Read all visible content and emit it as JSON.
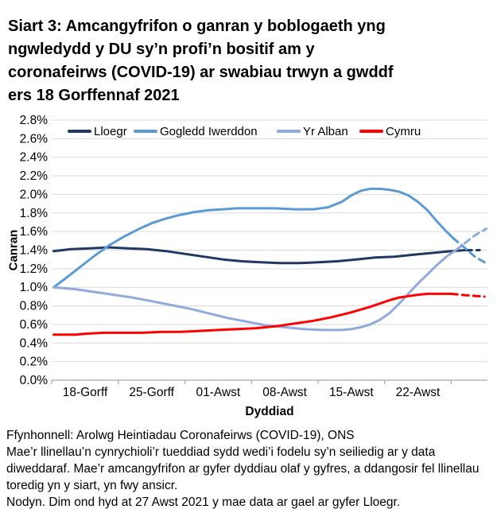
{
  "title": "Siart 3: Amcangyfrifon o ganran y boblogaeth yng ngwledydd y DU sy’n profi’n bositif am y coronafeirws (COVID-19) ar swabiau trwyn a gwddf ers 18 Gorffennaf 2021",
  "footnotes": {
    "source": "Ffynhonnell: Arolwg Heintiadau Coronafeirws (COVID-19), ONS",
    "note_trend": "Mae’r llinellau’n cynrychioli’r tueddiad sydd wedi’i fodelu sy’n seiliedig ar y data diweddaraf. Mae’r amcangyfrifon ar gyfer dyddiau olaf y gyfres, a ddangosir fel llinellau toredig yn y siart, yn fwy ansicr.",
    "note_england": "Nodyn. Dim ond hyd at 27 Awst 2021 y mae data ar gael ar gyfer Lloegr."
  },
  "chart_data": {
    "type": "line",
    "title": "Siart 3: Amcangyfrifon o ganran y boblogaeth yng ngwledydd y DU sy’n profi’n bositif am y coronafeirws (COVID-19) ar swabiau trwyn a gwddf ers 18 Gorffennaf 2021",
    "xlabel": "Dyddiad",
    "ylabel": "Canran",
    "x_unit": "days since 18 July 2021 (trend lines begin slightly before the first labelled date)",
    "x_tick_labels": [
      "18-Gorff",
      "25-Gorff",
      "01-Awst",
      "08-Awst",
      "15-Awst",
      "22-Awst"
    ],
    "y_tick_labels": [
      "0.0%",
      "0.2%",
      "0.4%",
      "0.6%",
      "0.8%",
      "1.0%",
      "1.2%",
      "1.4%",
      "1.6%",
      "1.8%",
      "2.0%",
      "2.2%",
      "2.4%",
      "2.6%",
      "2.8%"
    ],
    "ylim": [
      0,
      2.8
    ],
    "grid": "horizontal",
    "gridline_color": "#d9d9d9",
    "axis_color": "#a6a6a6",
    "legend_position": "top",
    "dashed_meaning": "llinellau toredig = amcangyfrifon mwy ansicr ar gyfer dyddiau olaf y gyfres",
    "series": [
      {
        "name": "Lloegr",
        "color": "#1f3864",
        "solid": [
          [
            -3.3,
            1.39
          ],
          [
            -1.5,
            1.41
          ],
          [
            0.5,
            1.42
          ],
          [
            2.5,
            1.43
          ],
          [
            4.5,
            1.42
          ],
          [
            6.5,
            1.41
          ],
          [
            8.5,
            1.39
          ],
          [
            10.5,
            1.36
          ],
          [
            12.5,
            1.33
          ],
          [
            14.5,
            1.3
          ],
          [
            16.5,
            1.28
          ],
          [
            18.5,
            1.27
          ],
          [
            20.5,
            1.26
          ],
          [
            22.5,
            1.26
          ],
          [
            24.5,
            1.27
          ],
          [
            26.5,
            1.28
          ],
          [
            28.5,
            1.3
          ],
          [
            30.5,
            1.32
          ],
          [
            32.5,
            1.33
          ],
          [
            34.5,
            1.35
          ],
          [
            36.5,
            1.37
          ],
          [
            38.5,
            1.39
          ],
          [
            40,
            1.4
          ]
        ],
        "dashed": [
          [
            40,
            1.4
          ],
          [
            41.5,
            1.4
          ]
        ]
      },
      {
        "name": "Gogledd Iwerddon",
        "color": "#5b9bd5",
        "solid": [
          [
            -3.3,
            1.0
          ],
          [
            -2,
            1.1
          ],
          [
            -0.5,
            1.22
          ],
          [
            1,
            1.34
          ],
          [
            2.5,
            1.45
          ],
          [
            4,
            1.54
          ],
          [
            5.5,
            1.62
          ],
          [
            7,
            1.69
          ],
          [
            8.5,
            1.74
          ],
          [
            10,
            1.78
          ],
          [
            11.5,
            1.81
          ],
          [
            13,
            1.83
          ],
          [
            14.5,
            1.84
          ],
          [
            16,
            1.85
          ],
          [
            18,
            1.85
          ],
          [
            20,
            1.85
          ],
          [
            22,
            1.84
          ],
          [
            24,
            1.84
          ],
          [
            25.5,
            1.86
          ],
          [
            27,
            1.92
          ],
          [
            28,
            1.99
          ],
          [
            29,
            2.04
          ],
          [
            30,
            2.06
          ],
          [
            31,
            2.06
          ],
          [
            32,
            2.05
          ],
          [
            33,
            2.03
          ],
          [
            34,
            1.99
          ],
          [
            35,
            1.92
          ],
          [
            36,
            1.83
          ],
          [
            37,
            1.71
          ],
          [
            38,
            1.6
          ],
          [
            38.7,
            1.53
          ]
        ],
        "dashed": [
          [
            38.7,
            1.53
          ],
          [
            40,
            1.42
          ],
          [
            41,
            1.33
          ],
          [
            42,
            1.27
          ]
        ]
      },
      {
        "name": "Yr Alban",
        "color": "#8faadc",
        "solid": [
          [
            -3.3,
            1.0
          ],
          [
            -1,
            0.98
          ],
          [
            1,
            0.95
          ],
          [
            3,
            0.92
          ],
          [
            5,
            0.89
          ],
          [
            7,
            0.85
          ],
          [
            9,
            0.81
          ],
          [
            11,
            0.77
          ],
          [
            13,
            0.72
          ],
          [
            15,
            0.67
          ],
          [
            17,
            0.63
          ],
          [
            19,
            0.59
          ],
          [
            21,
            0.57
          ],
          [
            23,
            0.55
          ],
          [
            25,
            0.54
          ],
          [
            27,
            0.54
          ],
          [
            28,
            0.55
          ],
          [
            29,
            0.57
          ],
          [
            30,
            0.6
          ],
          [
            31,
            0.65
          ],
          [
            32,
            0.72
          ],
          [
            33,
            0.82
          ],
          [
            34,
            0.93
          ],
          [
            35,
            1.04
          ],
          [
            36,
            1.14
          ],
          [
            37,
            1.24
          ],
          [
            38,
            1.33
          ],
          [
            39,
            1.4
          ]
        ],
        "dashed": [
          [
            39,
            1.4
          ],
          [
            40,
            1.48
          ],
          [
            41,
            1.56
          ],
          [
            42.2,
            1.63
          ]
        ]
      },
      {
        "name": "Cymru",
        "color": "#ff0000",
        "solid": [
          [
            -3.3,
            0.49
          ],
          [
            -1,
            0.49
          ],
          [
            0,
            0.5
          ],
          [
            2,
            0.51
          ],
          [
            4,
            0.51
          ],
          [
            6,
            0.51
          ],
          [
            8,
            0.52
          ],
          [
            10,
            0.52
          ],
          [
            12,
            0.53
          ],
          [
            14,
            0.54
          ],
          [
            16,
            0.55
          ],
          [
            18,
            0.56
          ],
          [
            20,
            0.58
          ],
          [
            22,
            0.61
          ],
          [
            24,
            0.64
          ],
          [
            26,
            0.68
          ],
          [
            28,
            0.73
          ],
          [
            30,
            0.79
          ],
          [
            32,
            0.86
          ],
          [
            33,
            0.89
          ],
          [
            34,
            0.905
          ],
          [
            35,
            0.92
          ],
          [
            36,
            0.93
          ],
          [
            37,
            0.93
          ],
          [
            38.5,
            0.93
          ]
        ],
        "dashed": [
          [
            38.5,
            0.93
          ],
          [
            40,
            0.915
          ],
          [
            42,
            0.9
          ]
        ]
      }
    ]
  }
}
